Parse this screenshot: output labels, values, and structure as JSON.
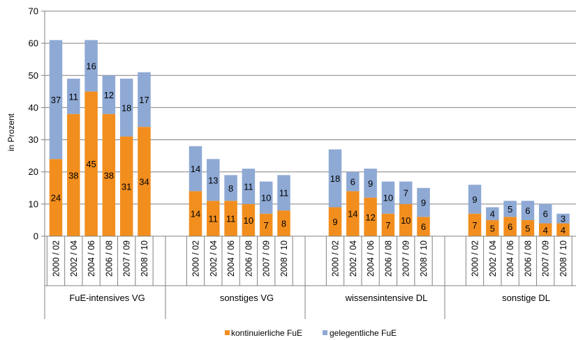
{
  "chart_data": {
    "type": "bar",
    "stacked": true,
    "ylabel": "in Prozent",
    "ylim": [
      0,
      70
    ],
    "yticks": [
      0,
      10,
      20,
      30,
      40,
      50,
      60,
      70
    ],
    "grid": "horizontal",
    "legend_position": "bottom",
    "series": [
      {
        "name": "kontinuierliche FuE",
        "color": "#f28e1e"
      },
      {
        "name": "gelegentliche FuE",
        "color": "#8ea9d4"
      }
    ],
    "groups": [
      {
        "name": "FuE-intensives VG",
        "categories": [
          "2000 / 02",
          "2002 / 04",
          "2004 / 06",
          "2006 / 08",
          "2007 / 09",
          "2008 / 10"
        ],
        "kontinuierlich": [
          24,
          38,
          45,
          38,
          31,
          34
        ],
        "gelegentlich": [
          37,
          11,
          16,
          12,
          18,
          17
        ]
      },
      {
        "name": "sonstiges VG",
        "categories": [
          "2000 / 02",
          "2002 / 04",
          "2004 / 06",
          "2006 / 08",
          "2007 / 09",
          "2008 / 10"
        ],
        "kontinuierlich": [
          14,
          11,
          11,
          10,
          7,
          8
        ],
        "gelegentlich": [
          14,
          13,
          8,
          11,
          10,
          11
        ]
      },
      {
        "name": "wissensintensive DL",
        "categories": [
          "2000 / 02",
          "2002 / 04",
          "2004 / 06",
          "2006 / 08",
          "2007 / 09",
          "2008 / 10"
        ],
        "kontinuierlich": [
          9,
          14,
          12,
          7,
          10,
          6
        ],
        "gelegentlich": [
          18,
          6,
          9,
          10,
          7,
          9
        ]
      },
      {
        "name": "sonstige DL",
        "categories": [
          "2000 / 02",
          "2002 / 04",
          "2004 / 06",
          "2006 / 08",
          "2007 / 09",
          "2008 / 10"
        ],
        "kontinuierlich": [
          7,
          5,
          6,
          5,
          4,
          4
        ],
        "gelegentlich": [
          9,
          4,
          5,
          6,
          6,
          3
        ]
      }
    ]
  }
}
